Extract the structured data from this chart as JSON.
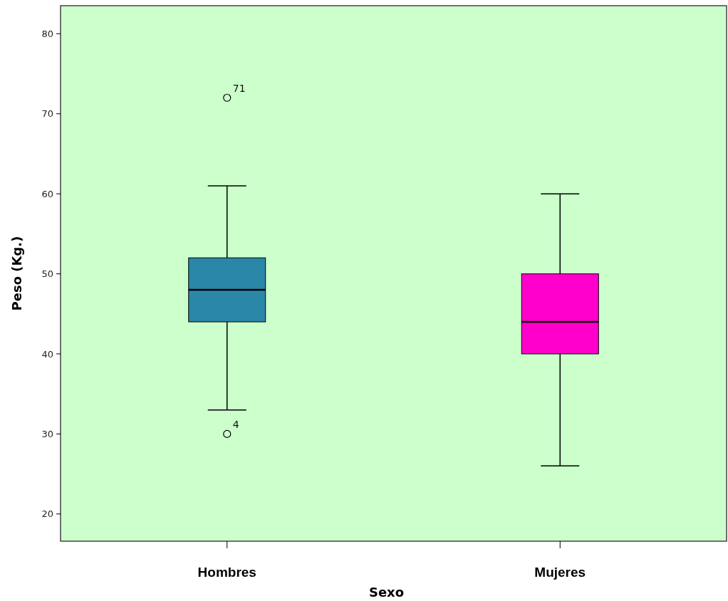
{
  "chart_data": {
    "type": "box",
    "xlabel": "Sexo",
    "ylabel": "Peso (Kg.)",
    "categories": [
      "Hombres",
      "Mujeres"
    ],
    "colors": [
      "#2a87a8",
      "#ff00cc"
    ],
    "boxes": [
      {
        "low": 33,
        "q1": 44,
        "median": 48,
        "q3": 52,
        "high": 61,
        "outliers": [
          72,
          30
        ]
      },
      {
        "low": 26,
        "q1": 40,
        "median": 44,
        "q3": 50,
        "high": 60
      }
    ],
    "ylim": [
      16.6,
      83.5
    ],
    "yticks": [
      20,
      30,
      40,
      50,
      60,
      70,
      80
    ],
    "grid": false,
    "annotations": [
      "71",
      "4"
    ]
  }
}
